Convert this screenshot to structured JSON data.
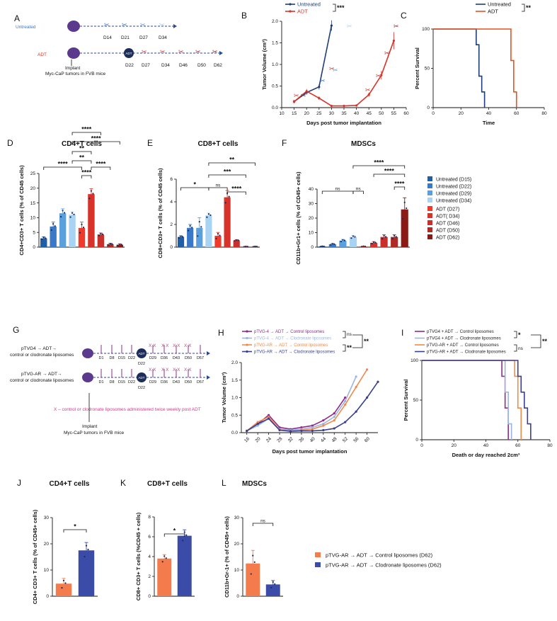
{
  "figure": {
    "panels": {
      "A": {
        "label": "A",
        "untreated": "Untreated",
        "adt": "ADT",
        "untreated_days": [
          "D14",
          "D21",
          "D27",
          "D34"
        ],
        "adt_days": [
          "D22",
          "D27",
          "D34",
          "D46",
          "D50",
          "D62"
        ],
        "adt_badge": "ADT",
        "implant": "Implant",
        "note": "Myc-CaP tumors in FVB mice",
        "untreated_color": "#3a78c8",
        "adt_color": "#d8332a"
      },
      "B": {
        "label": "B",
        "legend": [
          "Untreated",
          "ADT"
        ],
        "sig": "***",
        "xlabel": "Days post tumor implantation",
        "ylabel": "Tumor Volume (cm³)",
        "xticks": [
          "10",
          "15",
          "20",
          "25",
          "30",
          "35",
          "40",
          "45",
          "50",
          "55",
          "60"
        ],
        "yticks": [
          "0.0",
          "0.5",
          "1.0",
          "1.5",
          "2.0"
        ]
      },
      "C": {
        "label": "C",
        "legend": [
          "Untreated",
          "ADT"
        ],
        "sig": "**",
        "xlabel": "Time",
        "ylabel": "Percent Survival",
        "xticks": [
          "0",
          "20",
          "40",
          "60",
          "80"
        ],
        "yticks": [
          "0",
          "50",
          "100"
        ]
      },
      "D": {
        "label": "D",
        "title": "CD4+T cells",
        "ylabel": "CD4+CD3+ T cells (% of CD45 cells)",
        "yticks": [
          "0",
          "5",
          "10",
          "15",
          "20",
          "25"
        ],
        "sigs": [
          "****",
          "**",
          "****",
          "**",
          "****",
          "****",
          "****"
        ]
      },
      "E": {
        "label": "E",
        "title": "CD8+T cells",
        "ylabel": "CD8+CD3+ T cells (% of CD45 cells)",
        "yticks": [
          "0",
          "2",
          "4",
          "6"
        ],
        "sigs": [
          "*",
          "ns",
          "****",
          "***",
          "**"
        ]
      },
      "F": {
        "label": "F",
        "title": "MDSCs",
        "ylabel": "CD11b+Gr1+ cells (% of CD45+ cells)",
        "yticks": [
          "0",
          "10",
          "20",
          "30",
          "40"
        ],
        "sigs": [
          "ns",
          "ns",
          "****",
          "****",
          "****"
        ],
        "legend": [
          {
            "label": "Untreated (D15)",
            "color": "#1f5fa8"
          },
          {
            "label": "Untreated (D22)",
            "color": "#3a78c8"
          },
          {
            "label": "Untreated (D29)",
            "color": "#5aa0dd"
          },
          {
            "label": "Untreated (D34)",
            "color": "#a9d3f2"
          },
          {
            "label": "ADT (D27)",
            "color": "#ef3b2c"
          },
          {
            "label": "ADT( D34)",
            "color": "#d8332a"
          },
          {
            "label": "ADT (D46)",
            "color": "#c9302c"
          },
          {
            "label": "ADT (D50)",
            "color": "#b02a24"
          },
          {
            "label": "ADT (D62)",
            "color": "#8b1a14"
          }
        ]
      },
      "G": {
        "label": "G",
        "row1": [
          "pTVG4 → ADT→",
          "control or clodronate liposomes"
        ],
        "row2": [
          "pTVG-AR → ADT→",
          "control or clodronate liposomes"
        ],
        "days": [
          "D1",
          "D8",
          "D15",
          "D22",
          "D29",
          "D36",
          "D43",
          "D50",
          "D57"
        ],
        "adt_badge": "ADT",
        "xmark": "X X",
        "note": "X – control or clodronate liposomes administered twice weekly post ADT",
        "implant": "Implant",
        "tumor": "Myc-CaP tumors in FVB mice"
      },
      "H": {
        "label": "H",
        "legend": [
          "pTVG-4 → ADT → Control liposomes",
          "pTVG-4 → ADT → Clodronate liposomes",
          "pTVG-AR → ADT → Control liposomes",
          "pTVG-AR → ADT → Clodronate liposomes"
        ],
        "sigs": [
          "ns",
          "**",
          "**"
        ],
        "xlabel": "Days post tumor implantation",
        "ylabel": "Tumor Volume (cm³)",
        "xticks": [
          "16",
          "20",
          "24",
          "28",
          "32",
          "36",
          "40",
          "44",
          "48",
          "52",
          "56",
          "60"
        ],
        "yticks": [
          "0.0",
          "0.5",
          "1.0",
          "1.5",
          "2.0"
        ]
      },
      "I": {
        "label": "I",
        "legend": [
          "pTVG4 + ADT → Control liposomes",
          "pTVG4 + ADT → Clodronate liposomes",
          "pTVG-AR + ADT → Control liposomes",
          "pTVG-AR + ADT → Clodronate liposomes"
        ],
        "sigs": [
          "*",
          "ns",
          "**"
        ],
        "xlabel": "Death or day reached 2cm³",
        "ylabel": "Percent Survival",
        "xticks": [
          "0",
          "20",
          "40",
          "60",
          "80"
        ],
        "yticks": [
          "0",
          "50",
          "100"
        ]
      },
      "J": {
        "label": "J",
        "title": "CD4+T cells",
        "ylabel": "CD4+ CD3+ T cells (% of CD45+ cells)",
        "yticks": [
          "0",
          "10",
          "20",
          "30"
        ],
        "sig": "*"
      },
      "K": {
        "label": "K",
        "title": "CD8+T cells",
        "ylabel": "CD8+ CD3+ T cells (%CD45 + cells)",
        "yticks": [
          "0",
          "2",
          "4",
          "6",
          "8"
        ],
        "sig": "*"
      },
      "L": {
        "label": "L",
        "title": "MDSCs",
        "ylabel": "CD11b+Gr-1+ (% of CD45+ cells)",
        "yticks": [
          "0",
          "10",
          "20",
          "30"
        ],
        "sig": "ns",
        "legend": [
          {
            "label": "pTVG-AR → ADT → Control liposomes (D62)",
            "color": "#f47c4c"
          },
          {
            "label": "pTVG-AR → ADT → Clodronate liposomes (D62)",
            "color": "#3b4ba8"
          }
        ]
      }
    }
  },
  "chart_data": [
    {
      "panel": "B",
      "type": "line",
      "title": "",
      "xlabel": "Days post tumor implantation",
      "ylabel": "Tumor Volume (cm³)",
      "xlim": [
        10,
        60
      ],
      "ylim": [
        0,
        2.0
      ],
      "series": [
        {
          "name": "Untreated",
          "color": "#1f3d7a",
          "x": [
            15,
            20,
            25,
            30
          ],
          "y": [
            0.14,
            0.35,
            0.48,
            1.9
          ],
          "err": [
            0.04,
            0.05,
            0.06,
            0.12
          ]
        },
        {
          "name": "ADT",
          "color": "#d8332a",
          "x": [
            15,
            20,
            25,
            30,
            35,
            40,
            45,
            50,
            55
          ],
          "y": [
            0.14,
            0.38,
            0.22,
            0.04,
            0.04,
            0.05,
            0.3,
            0.75,
            1.55
          ],
          "err": [
            0.03,
            0.05,
            0.04,
            0.02,
            0.02,
            0.02,
            0.05,
            0.1,
            0.2
          ]
        }
      ]
    },
    {
      "panel": "C",
      "type": "line",
      "subtype": "survival",
      "xlabel": "Time",
      "ylabel": "Percent Survival",
      "xlim": [
        0,
        80
      ],
      "ylim": [
        0,
        100
      ],
      "series": [
        {
          "name": "Untreated",
          "color": "#1f3d7a",
          "x": [
            0,
            31,
            33,
            35,
            37
          ],
          "y": [
            100,
            80,
            40,
            20,
            0
          ]
        },
        {
          "name": "ADT",
          "color": "#e8501f",
          "x": [
            0,
            56,
            58,
            60
          ],
          "y": [
            100,
            60,
            20,
            0
          ]
        }
      ]
    },
    {
      "panel": "D",
      "type": "bar",
      "title": "CD4+T cells",
      "ylabel": "CD4+CD3+ T cells (% of CD45 cells)",
      "ylim": [
        0,
        25
      ],
      "categories": [
        "Untreated (D15)",
        "Untreated (D22)",
        "Untreated (D29)",
        "Untreated (D34)",
        "ADT (D27)",
        "ADT( D34)",
        "ADT (D46)",
        "ADT (D50)",
        "ADT (D62)"
      ],
      "values": [
        3.0,
        7.0,
        11.5,
        11.0,
        6.5,
        18.0,
        4.3,
        1.0,
        0.8
      ],
      "errors": [
        0.5,
        1.5,
        1.5,
        1.0,
        2.0,
        1.8,
        0.5,
        0.3,
        0.3
      ]
    },
    {
      "panel": "E",
      "type": "bar",
      "title": "CD8+T cells",
      "ylabel": "CD8+CD3+ T cells (% of CD45 cells)",
      "ylim": [
        0,
        6
      ],
      "categories": [
        "Untreated (D15)",
        "Untreated (D22)",
        "Untreated (D29)",
        "Untreated (D34)",
        "ADT (D27)",
        "ADT( D34)",
        "ADT (D46)",
        "ADT (D50)",
        "ADT (D62)"
      ],
      "values": [
        0.9,
        1.7,
        1.7,
        2.8,
        1.0,
        4.4,
        0.6,
        0.05,
        0.05
      ],
      "errors": [
        0.1,
        0.3,
        0.9,
        0.2,
        0.3,
        0.6,
        0.05,
        0.02,
        0.02
      ]
    },
    {
      "panel": "F",
      "type": "bar",
      "title": "MDSCs",
      "ylabel": "CD11b+Gr1+ cells (% of CD45+ cells)",
      "ylim": [
        0,
        40
      ],
      "categories": [
        "Untreated (D15)",
        "Untreated (D22)",
        "Untreated (D29)",
        "Untreated (D34)",
        "ADT (D27)",
        "ADT( D34)",
        "ADT (D46)",
        "ADT (D50)",
        "ADT (D62)"
      ],
      "values": [
        0.5,
        2.0,
        4.5,
        7.0,
        0.5,
        3.0,
        7.0,
        7.0,
        26.0
      ],
      "errors": [
        0.2,
        0.5,
        0.8,
        1.0,
        0.2,
        0.8,
        1.5,
        1.5,
        8.0
      ]
    },
    {
      "panel": "H",
      "type": "line",
      "xlabel": "Days post tumor implantation",
      "ylabel": "Tumor Volume (cm³)",
      "xlim": [
        14,
        64
      ],
      "ylim": [
        0,
        2.0
      ],
      "series": [
        {
          "name": "pTVG-4 → ADT → Control liposomes",
          "color": "#8e2c8c",
          "x": [
            16,
            20,
            24,
            28,
            32,
            36,
            40,
            44,
            48,
            52
          ],
          "y": [
            0.05,
            0.25,
            0.5,
            0.15,
            0.1,
            0.15,
            0.2,
            0.35,
            0.55,
            1.0
          ]
        },
        {
          "name": "pTVG-4 → ADT → Clodronate liposomes",
          "color": "#9ab6e0",
          "x": [
            16,
            20,
            24,
            28,
            32,
            36,
            40,
            44,
            48,
            52,
            56
          ],
          "y": [
            0.05,
            0.2,
            0.4,
            0.1,
            0.07,
            0.1,
            0.15,
            0.25,
            0.45,
            0.9,
            1.6
          ]
        },
        {
          "name": "pTVG-AR → ADT → Control liposomes",
          "color": "#f08a4b",
          "x": [
            16,
            20,
            24,
            28,
            32,
            36,
            40,
            44,
            48,
            52,
            56,
            60
          ],
          "y": [
            0.05,
            0.3,
            0.45,
            0.08,
            0.05,
            0.07,
            0.1,
            0.2,
            0.35,
            0.8,
            1.3,
            1.8
          ]
        },
        {
          "name": "pTVG-AR → ADT → Clodronate liposomes",
          "color": "#3b3f8f",
          "x": [
            16,
            20,
            24,
            28,
            32,
            36,
            40,
            44,
            48,
            52,
            56,
            60,
            64
          ],
          "y": [
            0.05,
            0.25,
            0.4,
            0.07,
            0.04,
            0.05,
            0.05,
            0.07,
            0.12,
            0.3,
            0.6,
            1.0,
            1.45
          ]
        }
      ]
    },
    {
      "panel": "I",
      "type": "line",
      "subtype": "survival",
      "xlabel": "Death or day reached 2cm³",
      "ylabel": "Percent Survival",
      "xlim": [
        0,
        80
      ],
      "ylim": [
        0,
        100
      ],
      "series": [
        {
          "name": "pTVG4 + ADT → Control liposomes",
          "color": "#8e2c8c",
          "x": [
            0,
            50,
            52,
            54
          ],
          "y": [
            100,
            80,
            40,
            0
          ]
        },
        {
          "name": "pTVG4 + ADT → Clodronate liposomes",
          "color": "#9ab6e0",
          "x": [
            0,
            52,
            54,
            56
          ],
          "y": [
            100,
            60,
            20,
            0
          ]
        },
        {
          "name": "pTVG-AR + ADT → Control liposomes",
          "color": "#f08a4b",
          "x": [
            0,
            58,
            60,
            62
          ],
          "y": [
            100,
            80,
            40,
            0
          ]
        },
        {
          "name": "pTVG-AR + ADT → Clodronate liposomes",
          "color": "#3b3f8f",
          "x": [
            0,
            60,
            62,
            64,
            66,
            68
          ],
          "y": [
            100,
            80,
            60,
            40,
            20,
            0
          ]
        }
      ]
    },
    {
      "panel": "J",
      "type": "bar",
      "title": "CD4+T cells",
      "ylabel": "CD4+ CD3+ T cells (% of CD45+ cells)",
      "ylim": [
        0,
        30
      ],
      "categories": [
        "Control liposomes",
        "Clodronate liposomes"
      ],
      "values": [
        4.8,
        17.5
      ],
      "errors": [
        2.0,
        3.0
      ]
    },
    {
      "panel": "K",
      "type": "bar",
      "title": "CD8+T cells",
      "ylabel": "CD8+ CD3+ T cells (%CD45 + cells)",
      "ylim": [
        0,
        8
      ],
      "categories": [
        "Control liposomes",
        "Clodronate liposomes"
      ],
      "values": [
        3.8,
        6.1
      ],
      "errors": [
        0.4,
        0.6
      ]
    },
    {
      "panel": "L",
      "type": "bar",
      "title": "MDSCs",
      "ylabel": "CD11b+Gr-1+ (% of CD45+ cells)",
      "ylim": [
        0,
        30
      ],
      "categories": [
        "Control liposomes",
        "Clodronate liposomes"
      ],
      "values": [
        12.5,
        4.5
      ],
      "errors": [
        5.0,
        1.5
      ]
    }
  ]
}
